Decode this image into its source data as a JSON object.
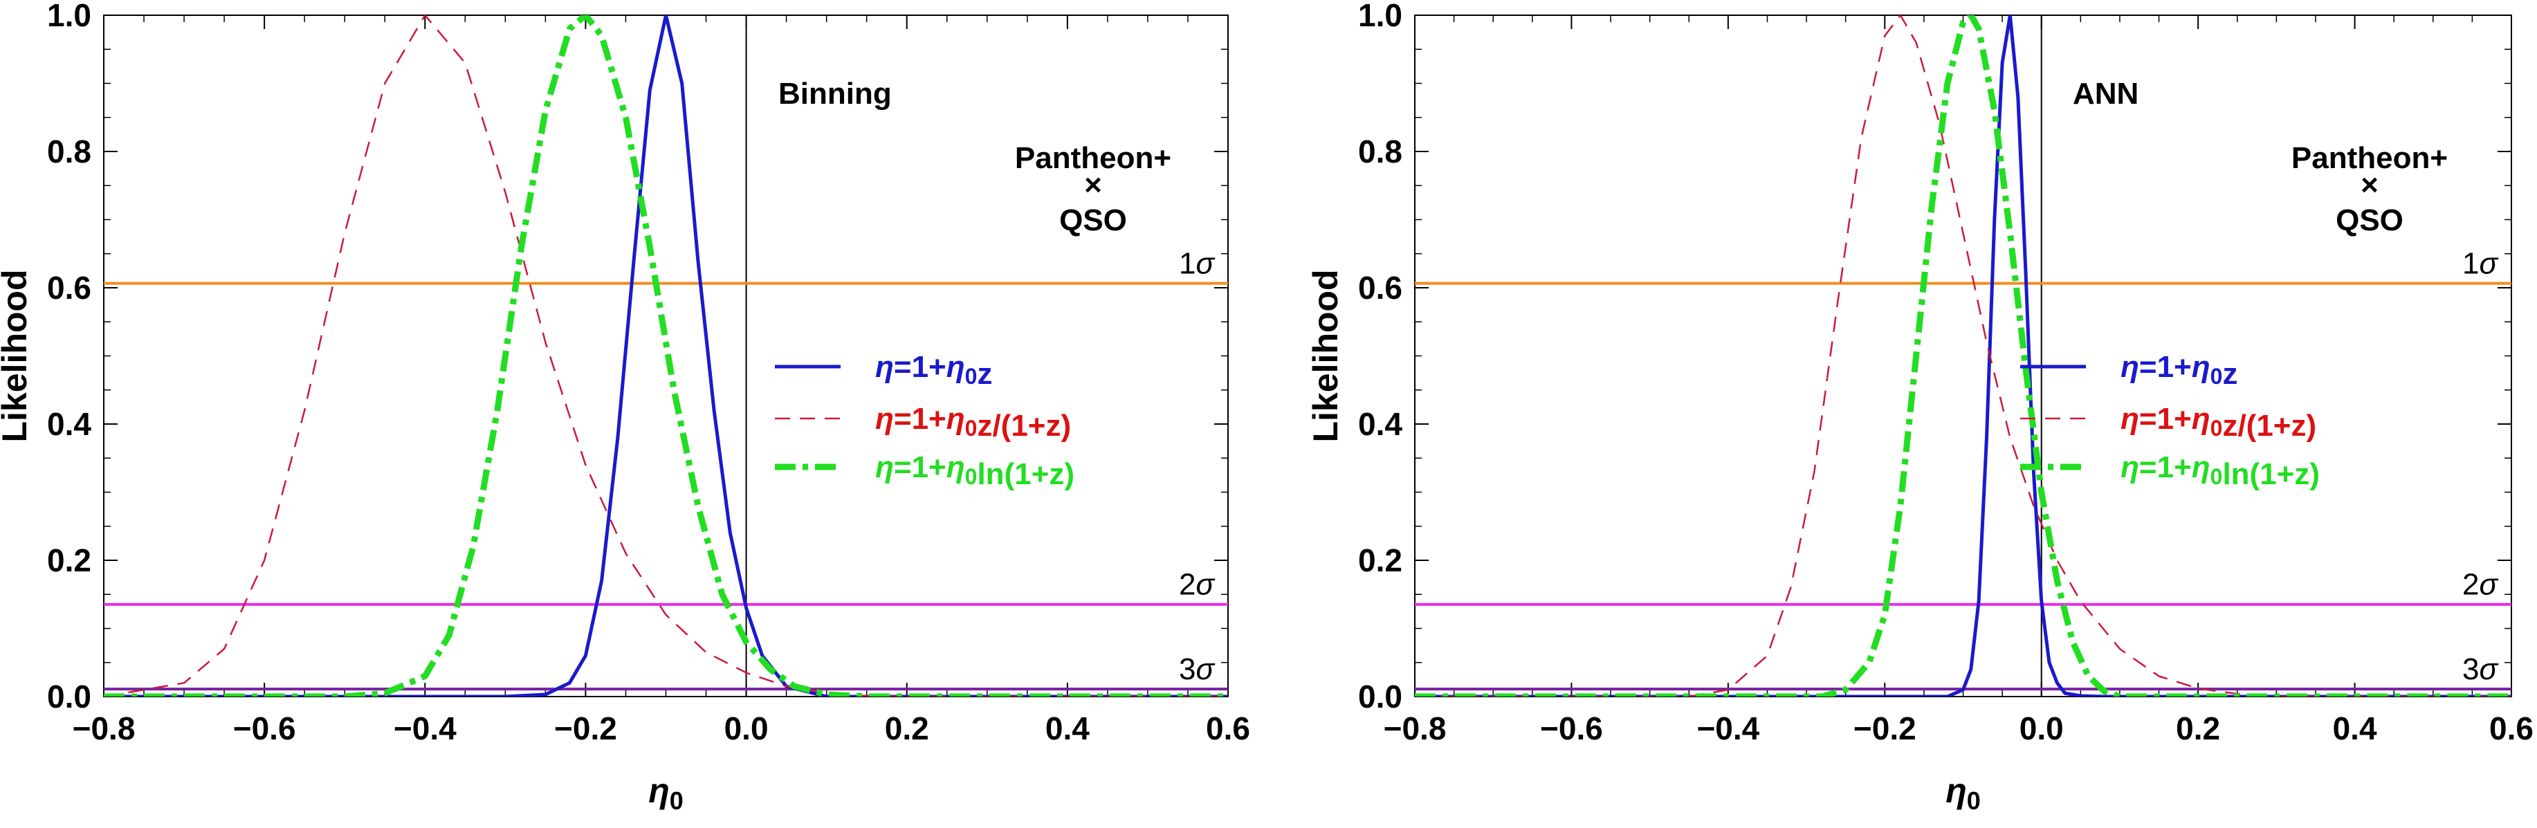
{
  "chart_data": [
    {
      "type": "line",
      "panel_label": "Binning",
      "dataset_label_top": "Pantheon+",
      "dataset_label_cross": "×",
      "dataset_label_bottom": "QSO",
      "xlabel": "η0",
      "ylabel": "Likelihood",
      "xlim": [
        -0.8,
        0.6
      ],
      "ylim": [
        0.0,
        1.0
      ],
      "xticks": [
        "−0.8",
        "−0.6",
        "−0.4",
        "−0.2",
        "0.0",
        "0.2",
        "0.4",
        "0.6"
      ],
      "yticks": [
        "0.0",
        "0.2",
        "0.4",
        "0.6",
        "0.8",
        "1.0"
      ],
      "grid": false,
      "vertical_line_x": 0.0,
      "confidence_levels": [
        {
          "label": "1σ",
          "y": 0.6065,
          "color": "#f28c1e"
        },
        {
          "label": "2σ",
          "y": 0.1353,
          "color": "#e62be6"
        },
        {
          "label": "3σ",
          "y": 0.0111,
          "color": "#7a1fa2"
        }
      ],
      "legend_position": "center-right",
      "series": [
        {
          "name": "η=1+η0z",
          "color": "#1a1acc",
          "style": "solid",
          "x": [
            -0.3,
            -0.25,
            -0.22,
            -0.2,
            -0.18,
            -0.16,
            -0.14,
            -0.12,
            -0.1,
            -0.08,
            -0.06,
            -0.04,
            -0.02,
            0.0,
            0.02,
            0.05,
            0.1
          ],
          "y": [
            0.0,
            0.003,
            0.02,
            0.06,
            0.17,
            0.38,
            0.64,
            0.89,
            1.0,
            0.9,
            0.64,
            0.42,
            0.24,
            0.13,
            0.06,
            0.015,
            0.0
          ]
        },
        {
          "name": "η=1+η0z/(1+z)",
          "color": "#cc1a3a",
          "style": "dashed",
          "x": [
            -0.8,
            -0.7,
            -0.65,
            -0.6,
            -0.55,
            -0.5,
            -0.45,
            -0.4,
            -0.35,
            -0.3,
            -0.25,
            -0.2,
            -0.15,
            -0.1,
            -0.05,
            0.0,
            0.05,
            0.1,
            0.15,
            0.2
          ],
          "y": [
            0.0,
            0.02,
            0.07,
            0.2,
            0.42,
            0.68,
            0.9,
            1.0,
            0.93,
            0.74,
            0.52,
            0.34,
            0.21,
            0.12,
            0.065,
            0.035,
            0.015,
            0.005,
            0.001,
            0.0
          ]
        },
        {
          "name": "η=1+η0ln(1+z)",
          "color": "#22dd22",
          "style": "dashdot",
          "x": [
            -0.5,
            -0.45,
            -0.4,
            -0.37,
            -0.34,
            -0.31,
            -0.28,
            -0.25,
            -0.22,
            -0.2,
            -0.18,
            -0.15,
            -0.12,
            -0.09,
            -0.06,
            -0.03,
            0.0,
            0.03,
            0.06,
            0.1,
            0.15
          ],
          "y": [
            0.0,
            0.005,
            0.03,
            0.09,
            0.22,
            0.42,
            0.66,
            0.86,
            0.98,
            1.0,
            0.97,
            0.85,
            0.66,
            0.45,
            0.28,
            0.15,
            0.08,
            0.04,
            0.015,
            0.003,
            0.0
          ]
        }
      ]
    },
    {
      "type": "line",
      "panel_label": "ANN",
      "dataset_label_top": "Pantheon+",
      "dataset_label_cross": "×",
      "dataset_label_bottom": "QSO",
      "xlabel": "η0",
      "ylabel": "Likelihood",
      "xlim": [
        -0.8,
        0.6
      ],
      "ylim": [
        0.0,
        1.0
      ],
      "xticks": [
        "−0.8",
        "−0.6",
        "−0.4",
        "−0.2",
        "0.0",
        "0.2",
        "0.4",
        "0.6"
      ],
      "yticks": [
        "0.0",
        "0.2",
        "0.4",
        "0.6",
        "0.8",
        "1.0"
      ],
      "grid": false,
      "vertical_line_x": 0.0,
      "confidence_levels": [
        {
          "label": "1σ",
          "y": 0.6065,
          "color": "#f28c1e"
        },
        {
          "label": "2σ",
          "y": 0.1353,
          "color": "#e62be6"
        },
        {
          "label": "3σ",
          "y": 0.0111,
          "color": "#7a1fa2"
        }
      ],
      "legend_position": "center-right",
      "series": [
        {
          "name": "η=1+η0z",
          "color": "#1a1acc",
          "style": "solid",
          "x": [
            -0.12,
            -0.1,
            -0.09,
            -0.08,
            -0.07,
            -0.06,
            -0.05,
            -0.04,
            -0.03,
            -0.02,
            -0.01,
            0.0,
            0.01,
            0.02,
            0.03,
            0.05,
            0.08
          ],
          "y": [
            0.0,
            0.01,
            0.04,
            0.14,
            0.38,
            0.7,
            0.93,
            1.0,
            0.88,
            0.62,
            0.33,
            0.14,
            0.05,
            0.02,
            0.005,
            0.001,
            0.0
          ]
        },
        {
          "name": "η=1+η0z/(1+z)",
          "color": "#cc1a3a",
          "style": "dashed",
          "x": [
            -0.45,
            -0.4,
            -0.35,
            -0.32,
            -0.29,
            -0.26,
            -0.23,
            -0.2,
            -0.18,
            -0.16,
            -0.13,
            -0.1,
            -0.07,
            -0.04,
            -0.01,
            0.02,
            0.05,
            0.1,
            0.15,
            0.2,
            0.25,
            0.3
          ],
          "y": [
            0.0,
            0.01,
            0.06,
            0.16,
            0.33,
            0.58,
            0.82,
            0.97,
            1.0,
            0.96,
            0.84,
            0.68,
            0.52,
            0.38,
            0.28,
            0.2,
            0.14,
            0.07,
            0.03,
            0.012,
            0.004,
            0.0
          ]
        },
        {
          "name": "η=1+η0ln(1+z)",
          "color": "#22dd22",
          "style": "dashdot",
          "x": [
            -0.28,
            -0.25,
            -0.22,
            -0.2,
            -0.18,
            -0.16,
            -0.14,
            -0.12,
            -0.1,
            -0.09,
            -0.08,
            -0.06,
            -0.04,
            -0.02,
            0.0,
            0.02,
            0.04,
            0.06,
            0.08,
            0.1
          ],
          "y": [
            0.0,
            0.01,
            0.05,
            0.12,
            0.28,
            0.5,
            0.72,
            0.9,
            0.99,
            1.0,
            0.98,
            0.86,
            0.68,
            0.48,
            0.3,
            0.17,
            0.08,
            0.03,
            0.008,
            0.0
          ]
        }
      ]
    }
  ]
}
